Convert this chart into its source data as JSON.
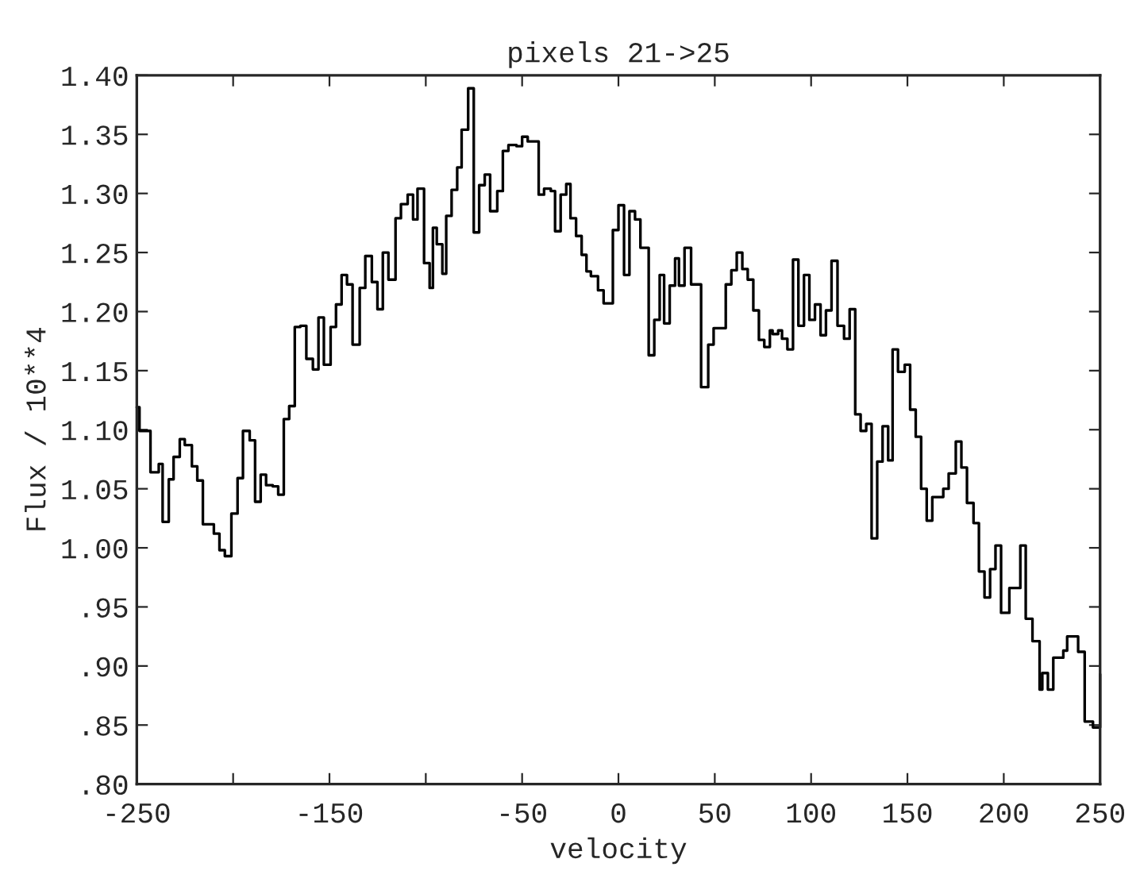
{
  "chart_data": {
    "type": "step",
    "title": "pixels 21->25",
    "xlabel": "velocity",
    "ylabel": "Flux / 10**4",
    "xlim": [
      -250,
      250
    ],
    "ylim": [
      0.8,
      1.4
    ],
    "xticks": [
      -250,
      {
        "value": -200,
        "label": null
      },
      -150,
      {
        "value": -100,
        "label": null
      },
      -50,
      0,
      50,
      100,
      150,
      200,
      250
    ],
    "yticks": [
      {
        "value": 0.8,
        "label": ".80"
      },
      {
        "value": 0.85,
        "label": ".85"
      },
      {
        "value": 0.9,
        "label": ".90"
      },
      {
        "value": 0.95,
        "label": ".95"
      },
      {
        "value": 1.0,
        "label": "1.00"
      },
      {
        "value": 1.05,
        "label": "1.05"
      },
      {
        "value": 1.1,
        "label": "1.10"
      },
      {
        "value": 1.15,
        "label": "1.15"
      },
      {
        "value": 1.2,
        "label": "1.20"
      },
      {
        "value": 1.25,
        "label": "1.25"
      },
      {
        "value": 1.3,
        "label": "1.30"
      },
      {
        "value": 1.35,
        "label": "1.35"
      },
      {
        "value": 1.4,
        "label": "1.40"
      }
    ],
    "grid": false,
    "series": [
      {
        "color": "#000000",
        "x": [
          -250,
          -248.6,
          -242.9,
          -238.6,
          -236.6,
          -233.4,
          -230.9,
          -227.7,
          -225.1,
          -221.4,
          -218.6,
          -215.7,
          -210,
          -207.1,
          -204.3,
          -200.9,
          -197.7,
          -194.9,
          -191.4,
          -188.6,
          -185.7,
          -182.9,
          -179.4,
          -176.6,
          -173.7,
          -170.9,
          -168,
          -165.1,
          -162,
          -158.6,
          -155.7,
          -152.9,
          -149.4,
          -146.6,
          -143.7,
          -140.9,
          -138,
          -134.3,
          -131.4,
          -128,
          -125.1,
          -122.3,
          -119.4,
          -115.7,
          -112.9,
          -109.4,
          -106.6,
          -104.3,
          -100.9,
          -98,
          -96.3,
          -94.3,
          -91.4,
          -89.4,
          -86.6,
          -83.7,
          -81.4,
          -78,
          -75.1,
          -72.3,
          -69.4,
          -66.6,
          -62.9,
          -60,
          -57.1,
          -52.9,
          -50,
          -47.1,
          -41.4,
          -38.6,
          -35.1,
          -32.9,
          -30,
          -27.1,
          -24.9,
          -22,
          -19.1,
          -16.6,
          -14.3,
          -10.6,
          -7.7,
          -2.9,
          0,
          2.9,
          5.7,
          8.6,
          11.4,
          15.7,
          18.6,
          21.4,
          23.7,
          26.6,
          29.4,
          31.4,
          34.3,
          37.7,
          42.9,
          46.6,
          49.4,
          55.7,
          58.6,
          61.4,
          64.3,
          67.1,
          70,
          72.9,
          75.7,
          78.6,
          80,
          82.9,
          84.9,
          87.7,
          90.6,
          93.4,
          96.3,
          99.1,
          102,
          104.9,
          107.7,
          110.6,
          113.7,
          117.1,
          120,
          122.9,
          125.7,
          128.6,
          131.4,
          134.3,
          137.1,
          140,
          142.3,
          145.1,
          148.6,
          151.4,
          154.3,
          157.1,
          160,
          162.9,
          168.6,
          171.4,
          175.1,
          178,
          180.9,
          184.3,
          187.1,
          190,
          192.9,
          195.7,
          198.6,
          202.9,
          208.6,
          211.4,
          214.9,
          218.6,
          220,
          222.9,
          225.7,
          230.9,
          232.9,
          238.6,
          242,
          246.3,
          250
        ],
        "values": [
          1.119,
          1.099,
          1.064,
          1.071,
          1.022,
          1.058,
          1.077,
          1.092,
          1.087,
          1.069,
          1.057,
          1.02,
          1.012,
          0.998,
          0.993,
          1.029,
          1.059,
          1.099,
          1.091,
          1.039,
          1.062,
          1.053,
          1.052,
          1.045,
          1.109,
          1.12,
          1.187,
          1.188,
          1.16,
          1.151,
          1.195,
          1.155,
          1.187,
          1.206,
          1.231,
          1.223,
          1.172,
          1.22,
          1.247,
          1.225,
          1.202,
          1.25,
          1.227,
          1.279,
          1.291,
          1.299,
          1.278,
          1.304,
          1.241,
          1.22,
          1.271,
          1.257,
          1.232,
          1.281,
          1.303,
          1.322,
          1.354,
          1.389,
          1.267,
          1.307,
          1.316,
          1.285,
          1.302,
          1.336,
          1.341,
          1.34,
          1.348,
          1.344,
          1.299,
          1.304,
          1.302,
          1.268,
          1.299,
          1.308,
          1.279,
          1.264,
          1.248,
          1.234,
          1.23,
          1.218,
          1.207,
          1.269,
          1.29,
          1.231,
          1.285,
          1.278,
          1.254,
          1.163,
          1.193,
          1.231,
          1.19,
          1.222,
          1.245,
          1.222,
          1.254,
          1.223,
          1.136,
          1.172,
          1.186,
          1.223,
          1.235,
          1.25,
          1.236,
          1.227,
          1.201,
          1.176,
          1.17,
          1.184,
          1.181,
          1.184,
          1.177,
          1.168,
          1.244,
          1.188,
          1.231,
          1.193,
          1.206,
          1.18,
          1.201,
          1.243,
          1.188,
          1.177,
          1.202,
          1.113,
          1.099,
          1.105,
          1.008,
          1.073,
          1.103,
          1.074,
          1.168,
          1.149,
          1.155,
          1.117,
          1.094,
          1.05,
          1.023,
          1.043,
          1.05,
          1.063,
          1.09,
          1.068,
          1.038,
          1.021,
          0.98,
          0.958,
          0.982,
          1.002,
          0.945,
          0.966,
          1.002,
          0.94,
          0.921,
          0.88,
          0.894,
          0.88,
          0.907,
          0.913,
          0.925,
          0.912,
          0.853,
          0.848,
          0.893
        ]
      }
    ]
  }
}
